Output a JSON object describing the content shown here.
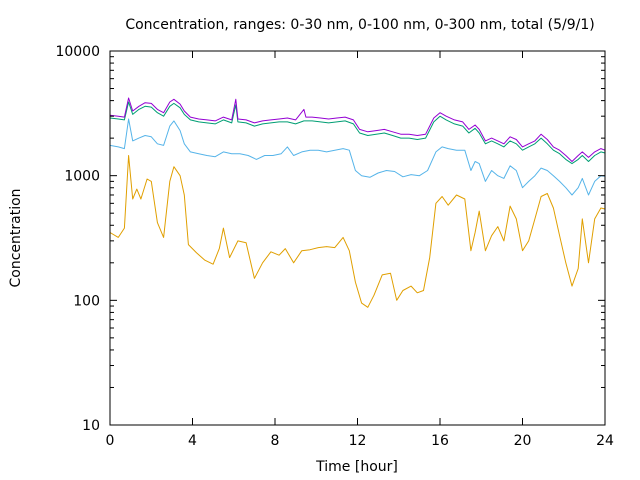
{
  "chart_data": {
    "type": "line",
    "title": "Concentration, ranges: 0-30 nm, 0-100 nm, 0-300 nm, total (5/9/1)",
    "xlabel": "Time [hour]",
    "ylabel": "Concentration",
    "xlim": [
      0,
      24
    ],
    "ylim": [
      10,
      10000
    ],
    "yscale": "log",
    "grid": false,
    "x_ticks": [
      "0",
      "4",
      "8",
      "12",
      "16",
      "20",
      "24"
    ],
    "y_ticks": [
      "10",
      "100",
      "1000",
      "10000"
    ],
    "series": [
      {
        "color": "#e09f00",
        "points": [
          [
            0,
            350
          ],
          [
            0.4,
            320
          ],
          [
            0.7,
            380
          ],
          [
            0.9,
            1450
          ],
          [
            1.1,
            650
          ],
          [
            1.3,
            780
          ],
          [
            1.5,
            650
          ],
          [
            1.8,
            940
          ],
          [
            2.0,
            900
          ],
          [
            2.3,
            420
          ],
          [
            2.6,
            320
          ],
          [
            2.9,
            900
          ],
          [
            3.1,
            1180
          ],
          [
            3.4,
            1000
          ],
          [
            3.6,
            700
          ],
          [
            3.8,
            280
          ],
          [
            4.2,
            240
          ],
          [
            4.6,
            210
          ],
          [
            5.0,
            195
          ],
          [
            5.3,
            260
          ],
          [
            5.5,
            380
          ],
          [
            5.8,
            220
          ],
          [
            6.2,
            300
          ],
          [
            6.6,
            290
          ],
          [
            7.0,
            150
          ],
          [
            7.4,
            200
          ],
          [
            7.8,
            245
          ],
          [
            8.2,
            230
          ],
          [
            8.5,
            260
          ],
          [
            8.9,
            200
          ],
          [
            9.3,
            250
          ],
          [
            9.7,
            255
          ],
          [
            10.1,
            265
          ],
          [
            10.5,
            270
          ],
          [
            10.9,
            265
          ],
          [
            11.3,
            320
          ],
          [
            11.6,
            250
          ],
          [
            11.9,
            140
          ],
          [
            12.2,
            95
          ],
          [
            12.5,
            88
          ],
          [
            12.8,
            110
          ],
          [
            13.2,
            160
          ],
          [
            13.6,
            165
          ],
          [
            13.9,
            100
          ],
          [
            14.2,
            120
          ],
          [
            14.6,
            130
          ],
          [
            14.9,
            115
          ],
          [
            15.2,
            120
          ],
          [
            15.5,
            220
          ],
          [
            15.8,
            600
          ],
          [
            16.1,
            680
          ],
          [
            16.4,
            580
          ],
          [
            16.8,
            700
          ],
          [
            17.2,
            650
          ],
          [
            17.5,
            250
          ],
          [
            17.7,
            350
          ],
          [
            17.9,
            520
          ],
          [
            18.2,
            250
          ],
          [
            18.5,
            330
          ],
          [
            18.8,
            390
          ],
          [
            19.1,
            300
          ],
          [
            19.4,
            570
          ],
          [
            19.7,
            450
          ],
          [
            20.0,
            250
          ],
          [
            20.3,
            300
          ],
          [
            20.6,
            450
          ],
          [
            20.9,
            680
          ],
          [
            21.2,
            720
          ],
          [
            21.5,
            550
          ],
          [
            21.8,
            330
          ],
          [
            22.1,
            200
          ],
          [
            22.4,
            130
          ],
          [
            22.7,
            180
          ],
          [
            22.9,
            450
          ],
          [
            23.2,
            200
          ],
          [
            23.5,
            450
          ],
          [
            23.8,
            550
          ],
          [
            24,
            540
          ]
        ]
      },
      {
        "color": "#56b4e9",
        "points": [
          [
            0,
            1750
          ],
          [
            0.4,
            1700
          ],
          [
            0.7,
            1650
          ],
          [
            0.9,
            2850
          ],
          [
            1.1,
            1900
          ],
          [
            1.4,
            2000
          ],
          [
            1.7,
            2100
          ],
          [
            2.0,
            2050
          ],
          [
            2.3,
            1800
          ],
          [
            2.6,
            1750
          ],
          [
            2.9,
            2500
          ],
          [
            3.1,
            2750
          ],
          [
            3.4,
            2300
          ],
          [
            3.6,
            1800
          ],
          [
            3.9,
            1550
          ],
          [
            4.3,
            1500
          ],
          [
            4.7,
            1450
          ],
          [
            5.1,
            1420
          ],
          [
            5.5,
            1550
          ],
          [
            5.9,
            1500
          ],
          [
            6.3,
            1500
          ],
          [
            6.7,
            1450
          ],
          [
            7.1,
            1350
          ],
          [
            7.5,
            1450
          ],
          [
            7.9,
            1450
          ],
          [
            8.3,
            1500
          ],
          [
            8.6,
            1700
          ],
          [
            8.9,
            1450
          ],
          [
            9.3,
            1550
          ],
          [
            9.7,
            1600
          ],
          [
            10.1,
            1600
          ],
          [
            10.5,
            1550
          ],
          [
            10.9,
            1600
          ],
          [
            11.3,
            1650
          ],
          [
            11.6,
            1600
          ],
          [
            11.9,
            1100
          ],
          [
            12.2,
            1000
          ],
          [
            12.6,
            970
          ],
          [
            13.0,
            1050
          ],
          [
            13.4,
            1100
          ],
          [
            13.8,
            1080
          ],
          [
            14.2,
            980
          ],
          [
            14.6,
            1020
          ],
          [
            15.0,
            1000
          ],
          [
            15.4,
            1100
          ],
          [
            15.8,
            1550
          ],
          [
            16.1,
            1700
          ],
          [
            16.4,
            1650
          ],
          [
            16.8,
            1600
          ],
          [
            17.2,
            1600
          ],
          [
            17.5,
            1100
          ],
          [
            17.7,
            1300
          ],
          [
            17.9,
            1250
          ],
          [
            18.2,
            900
          ],
          [
            18.5,
            1100
          ],
          [
            18.8,
            1000
          ],
          [
            19.1,
            950
          ],
          [
            19.4,
            1200
          ],
          [
            19.7,
            1100
          ],
          [
            20.0,
            800
          ],
          [
            20.3,
            900
          ],
          [
            20.6,
            1000
          ],
          [
            20.9,
            1150
          ],
          [
            21.2,
            1100
          ],
          [
            21.5,
            1000
          ],
          [
            21.8,
            900
          ],
          [
            22.1,
            800
          ],
          [
            22.4,
            700
          ],
          [
            22.7,
            800
          ],
          [
            22.9,
            950
          ],
          [
            23.2,
            700
          ],
          [
            23.5,
            900
          ],
          [
            23.8,
            1000
          ],
          [
            24,
            990
          ]
        ]
      },
      {
        "color": "#009e73",
        "points": [
          [
            0,
            2900
          ],
          [
            0.4,
            2850
          ],
          [
            0.7,
            2800
          ],
          [
            0.9,
            3900
          ],
          [
            1.1,
            3100
          ],
          [
            1.4,
            3400
          ],
          [
            1.7,
            3600
          ],
          [
            2.0,
            3550
          ],
          [
            2.3,
            3200
          ],
          [
            2.6,
            3000
          ],
          [
            2.9,
            3600
          ],
          [
            3.1,
            3800
          ],
          [
            3.4,
            3500
          ],
          [
            3.6,
            3100
          ],
          [
            3.9,
            2800
          ],
          [
            4.3,
            2700
          ],
          [
            4.7,
            2650
          ],
          [
            5.1,
            2600
          ],
          [
            5.5,
            2800
          ],
          [
            5.9,
            2650
          ],
          [
            6.1,
            3700
          ],
          [
            6.2,
            2700
          ],
          [
            6.6,
            2650
          ],
          [
            7.0,
            2500
          ],
          [
            7.4,
            2600
          ],
          [
            7.8,
            2650
          ],
          [
            8.2,
            2700
          ],
          [
            8.6,
            2700
          ],
          [
            9.0,
            2600
          ],
          [
            9.4,
            2750
          ],
          [
            9.8,
            2750
          ],
          [
            10.2,
            2700
          ],
          [
            10.6,
            2650
          ],
          [
            11.0,
            2700
          ],
          [
            11.4,
            2750
          ],
          [
            11.8,
            2600
          ],
          [
            12.1,
            2200
          ],
          [
            12.5,
            2100
          ],
          [
            12.9,
            2150
          ],
          [
            13.3,
            2200
          ],
          [
            13.7,
            2100
          ],
          [
            14.1,
            2000
          ],
          [
            14.5,
            2000
          ],
          [
            14.9,
            1950
          ],
          [
            15.3,
            2000
          ],
          [
            15.7,
            2700
          ],
          [
            16.0,
            3000
          ],
          [
            16.3,
            2800
          ],
          [
            16.7,
            2600
          ],
          [
            17.1,
            2500
          ],
          [
            17.4,
            2200
          ],
          [
            17.7,
            2400
          ],
          [
            17.9,
            2200
          ],
          [
            18.2,
            1800
          ],
          [
            18.5,
            1900
          ],
          [
            18.8,
            1800
          ],
          [
            19.1,
            1700
          ],
          [
            19.4,
            1900
          ],
          [
            19.7,
            1800
          ],
          [
            20.0,
            1600
          ],
          [
            20.3,
            1700
          ],
          [
            20.6,
            1800
          ],
          [
            20.9,
            2000
          ],
          [
            21.2,
            1800
          ],
          [
            21.5,
            1600
          ],
          [
            21.8,
            1500
          ],
          [
            22.1,
            1350
          ],
          [
            22.4,
            1250
          ],
          [
            22.7,
            1350
          ],
          [
            22.9,
            1450
          ],
          [
            23.2,
            1300
          ],
          [
            23.5,
            1450
          ],
          [
            23.8,
            1550
          ],
          [
            24,
            1520
          ]
        ]
      },
      {
        "color": "#9400d3",
        "points": [
          [
            0,
            3050
          ],
          [
            0.4,
            3000
          ],
          [
            0.7,
            2950
          ],
          [
            0.9,
            4200
          ],
          [
            1.1,
            3300
          ],
          [
            1.4,
            3600
          ],
          [
            1.7,
            3850
          ],
          [
            2.0,
            3800
          ],
          [
            2.3,
            3400
          ],
          [
            2.6,
            3200
          ],
          [
            2.9,
            3900
          ],
          [
            3.1,
            4100
          ],
          [
            3.4,
            3750
          ],
          [
            3.6,
            3300
          ],
          [
            3.9,
            2950
          ],
          [
            4.3,
            2850
          ],
          [
            4.7,
            2800
          ],
          [
            5.1,
            2750
          ],
          [
            5.5,
            2950
          ],
          [
            5.9,
            2800
          ],
          [
            6.1,
            4100
          ],
          [
            6.2,
            2850
          ],
          [
            6.6,
            2800
          ],
          [
            7.0,
            2650
          ],
          [
            7.4,
            2750
          ],
          [
            7.8,
            2800
          ],
          [
            8.2,
            2850
          ],
          [
            8.6,
            2900
          ],
          [
            9.0,
            2800
          ],
          [
            9.4,
            3400
          ],
          [
            9.5,
            2950
          ],
          [
            9.8,
            2950
          ],
          [
            10.2,
            2900
          ],
          [
            10.6,
            2850
          ],
          [
            11.0,
            2900
          ],
          [
            11.4,
            2950
          ],
          [
            11.8,
            2800
          ],
          [
            12.1,
            2350
          ],
          [
            12.5,
            2250
          ],
          [
            12.9,
            2300
          ],
          [
            13.3,
            2350
          ],
          [
            13.7,
            2250
          ],
          [
            14.1,
            2150
          ],
          [
            14.5,
            2150
          ],
          [
            14.9,
            2100
          ],
          [
            15.3,
            2150
          ],
          [
            15.7,
            2900
          ],
          [
            16.0,
            3200
          ],
          [
            16.3,
            3000
          ],
          [
            16.7,
            2800
          ],
          [
            17.1,
            2700
          ],
          [
            17.4,
            2350
          ],
          [
            17.7,
            2550
          ],
          [
            17.9,
            2350
          ],
          [
            18.2,
            1900
          ],
          [
            18.5,
            2000
          ],
          [
            18.8,
            1900
          ],
          [
            19.1,
            1800
          ],
          [
            19.4,
            2050
          ],
          [
            19.7,
            1950
          ],
          [
            20.0,
            1700
          ],
          [
            20.3,
            1800
          ],
          [
            20.6,
            1900
          ],
          [
            20.9,
            2150
          ],
          [
            21.2,
            1950
          ],
          [
            21.5,
            1700
          ],
          [
            21.8,
            1600
          ],
          [
            22.1,
            1450
          ],
          [
            22.4,
            1300
          ],
          [
            22.7,
            1450
          ],
          [
            22.9,
            1550
          ],
          [
            23.2,
            1400
          ],
          [
            23.5,
            1550
          ],
          [
            23.8,
            1650
          ],
          [
            24,
            1600
          ]
        ]
      }
    ]
  }
}
